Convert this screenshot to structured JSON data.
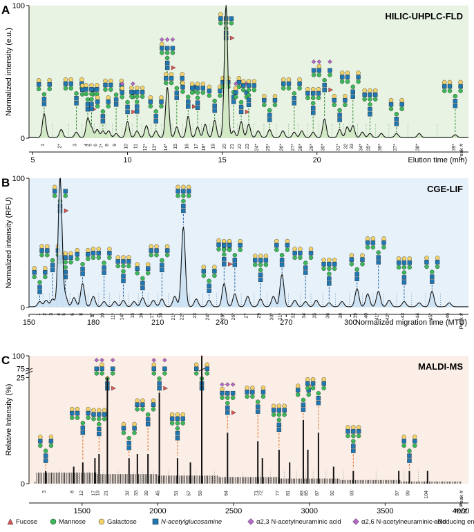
{
  "panels": [
    {
      "letter": "A",
      "method": "HILIC-UHPLC-FLD",
      "ylabel": "Normalized intensity (e.u.)",
      "xlabel": "Elution time (min)",
      "y_ticks": [
        "100",
        "0"
      ],
      "x_ticks": [
        {
          "v": 5,
          "label": "5"
        },
        {
          "v": 10,
          "label": "10"
        },
        {
          "v": 15,
          "label": "15"
        },
        {
          "v": 20,
          "label": "20"
        }
      ],
      "peak_label": "Peak #",
      "bg": "#e9f3e4",
      "fill": "#cbe6bd",
      "dash": "#2e8b2e",
      "peaks": [
        {
          "x": 5.6,
          "h": 18,
          "label": "1"
        },
        {
          "x": 6.5,
          "h": 6,
          "label": "2*"
        },
        {
          "x": 7.3,
          "h": 4,
          "label": "3"
        },
        {
          "x": 7.9,
          "h": 14,
          "label": "4"
        },
        {
          "x": 8.1,
          "h": 7,
          "label": "5"
        },
        {
          "x": 8.4,
          "h": 6,
          "label": "6"
        },
        {
          "x": 8.7,
          "h": 5,
          "label": "7*"
        },
        {
          "x": 9.0,
          "h": 5,
          "label": "8"
        },
        {
          "x": 9.4,
          "h": 3,
          "label": "9"
        },
        {
          "x": 10.0,
          "h": 12,
          "label": "10"
        },
        {
          "x": 10.5,
          "h": 5,
          "label": "11"
        },
        {
          "x": 11.0,
          "h": 9,
          "label": "12*"
        },
        {
          "x": 11.5,
          "h": 5,
          "label": "13*"
        },
        {
          "x": 12.1,
          "h": 38,
          "label": "14*"
        },
        {
          "x": 12.6,
          "h": 8,
          "label": "15"
        },
        {
          "x": 13.2,
          "h": 16,
          "label": "16"
        },
        {
          "x": 13.7,
          "h": 8,
          "label": "17"
        },
        {
          "x": 14.1,
          "h": 10,
          "label": "18*"
        },
        {
          "x": 14.6,
          "h": 13,
          "label": "19"
        },
        {
          "x": 15.2,
          "h": 100,
          "label": "20"
        },
        {
          "x": 15.6,
          "h": 5,
          "label": "21"
        },
        {
          "x": 16.0,
          "h": 12,
          "label": "22"
        },
        {
          "x": 16.4,
          "h": 10,
          "label": "23"
        },
        {
          "x": 16.9,
          "h": 5,
          "label": "24*"
        },
        {
          "x": 17.5,
          "h": 6,
          "label": "25*"
        },
        {
          "x": 18.2,
          "h": 5,
          "label": "26*"
        },
        {
          "x": 18.8,
          "h": 4,
          "label": "27*"
        },
        {
          "x": 19.2,
          "h": 5,
          "label": "28*"
        },
        {
          "x": 19.8,
          "h": 4,
          "label": "29*"
        },
        {
          "x": 20.4,
          "h": 14,
          "label": "30*"
        },
        {
          "x": 21.2,
          "h": 6,
          "label": "31*"
        },
        {
          "x": 21.6,
          "h": 8,
          "label": "32"
        },
        {
          "x": 21.9,
          "h": 9,
          "label": "33"
        },
        {
          "x": 22.4,
          "h": 4,
          "label": "34*"
        },
        {
          "x": 22.8,
          "h": 3,
          "label": "35*"
        },
        {
          "x": 23.4,
          "h": 3,
          "label": "36*"
        },
        {
          "x": 24.2,
          "h": 3,
          "label": "37*"
        },
        {
          "x": 25.4,
          "h": 3,
          "label": "38*"
        },
        {
          "x": 27.3,
          "h": 2,
          "label": "39*"
        }
      ]
    },
    {
      "letter": "B",
      "method": "CGE-LIF",
      "ylabel": "Normalized intensity (RFU)",
      "xlabel": "Normalized migration time (MTU)",
      "y_ticks": [
        "100",
        "0"
      ],
      "x_ticks": [
        {
          "v": 150,
          "label": "150"
        },
        {
          "v": 180,
          "label": "180"
        },
        {
          "v": 210,
          "label": "210"
        },
        {
          "v": 240,
          "label": "240"
        },
        {
          "v": 270,
          "label": "270"
        },
        {
          "v": 300,
          "label": "300"
        }
      ],
      "peak_label": "Peak #",
      "bg": "#e6f1fa",
      "fill": "#c7e0f3",
      "dash": "#1f5fa0",
      "peaks": [
        {
          "x": 155,
          "h": 4,
          "label": "1"
        },
        {
          "x": 158,
          "h": 5,
          "label": "2"
        },
        {
          "x": 161,
          "h": 6,
          "label": "3"
        },
        {
          "x": 164.5,
          "h": 100,
          "label": "4"
        },
        {
          "x": 167,
          "h": 8,
          "label": "5"
        },
        {
          "x": 171,
          "h": 7,
          "label": "6"
        },
        {
          "x": 175,
          "h": 18,
          "label": "8"
        },
        {
          "x": 180,
          "h": 8,
          "label": "9*"
        },
        {
          "x": 185,
          "h": 4,
          "label": "10"
        },
        {
          "x": 190,
          "h": 4,
          "label": "11*"
        },
        {
          "x": 194,
          "h": 5,
          "label": "14*"
        },
        {
          "x": 199,
          "h": 4,
          "label": "15"
        },
        {
          "x": 203,
          "h": 7,
          "label": "16"
        },
        {
          "x": 208,
          "h": 5,
          "label": "17"
        },
        {
          "x": 212,
          "h": 6,
          "label": "18"
        },
        {
          "x": 218,
          "h": 8,
          "label": "21*"
        },
        {
          "x": 222,
          "h": 62,
          "label": "22*"
        },
        {
          "x": 228,
          "h": 6,
          "label": "23"
        },
        {
          "x": 234,
          "h": 5,
          "label": "24*"
        },
        {
          "x": 241,
          "h": 18,
          "label": "25*"
        },
        {
          "x": 246,
          "h": 10,
          "label": "26*"
        },
        {
          "x": 252,
          "h": 8,
          "label": "27"
        },
        {
          "x": 258,
          "h": 6,
          "label": "29"
        },
        {
          "x": 264,
          "h": 8,
          "label": "30*"
        },
        {
          "x": 268,
          "h": 25,
          "label": "31*"
        },
        {
          "x": 274,
          "h": 5,
          "label": "32"
        },
        {
          "x": 279,
          "h": 4,
          "label": "34"
        },
        {
          "x": 284,
          "h": 5,
          "label": "35"
        },
        {
          "x": 290,
          "h": 3,
          "label": "36"
        },
        {
          "x": 296,
          "h": 4,
          "label": "38"
        },
        {
          "x": 303,
          "h": 14,
          "label": "39"
        },
        {
          "x": 308,
          "h": 10,
          "label": "40"
        },
        {
          "x": 313,
          "h": 12,
          "label": "41*"
        },
        {
          "x": 318,
          "h": 5,
          "label": "42*"
        },
        {
          "x": 325,
          "h": 4,
          "label": "43"
        },
        {
          "x": 332,
          "h": 3,
          "label": "44"
        },
        {
          "x": 338,
          "h": 12,
          "label": "45*"
        },
        {
          "x": 346,
          "h": 3,
          "label": "46"
        }
      ]
    },
    {
      "letter": "C",
      "method": "MALDI-MS",
      "ylabel": "Relative Intensity (%)",
      "xlabel": "m/z",
      "y_ticks": [
        "100",
        "75",
        "25",
        "0"
      ],
      "x_ticks": [
        {
          "v": 1500,
          "label": "1500"
        },
        {
          "v": 2000,
          "label": "2000"
        },
        {
          "v": 2500,
          "label": "2500"
        },
        {
          "v": 3000,
          "label": "3000"
        },
        {
          "v": 3500,
          "label": "3500"
        },
        {
          "v": 4000,
          "label": "4000"
        }
      ],
      "peak_label": "Peak #",
      "bg": "#fbeee6",
      "fill": "#111111",
      "dash": "#e06a1f",
      "peaks": [
        {
          "x": 1260,
          "h": 3,
          "label": "3"
        },
        {
          "x": 1445,
          "h": 4,
          "label": "8"
        },
        {
          "x": 1505,
          "h": 5,
          "label": "12"
        },
        {
          "x": 1585,
          "h": 6,
          "label": "17"
        },
        {
          "x": 1612,
          "h": 7,
          "label": "19"
        },
        {
          "x": 1667,
          "h": 25,
          "label": "21"
        },
        {
          "x": 1810,
          "h": 6,
          "label": "32"
        },
        {
          "x": 1865,
          "h": 7,
          "label": "33"
        },
        {
          "x": 1935,
          "h": 7,
          "label": "39"
        },
        {
          "x": 2010,
          "h": 28,
          "label": "45"
        },
        {
          "x": 2130,
          "h": 6,
          "label": "51"
        },
        {
          "x": 2215,
          "h": 5,
          "label": "57"
        },
        {
          "x": 2290,
          "h": 100,
          "label": "59"
        },
        {
          "x": 2460,
          "h": 12,
          "label": "64"
        },
        {
          "x": 2660,
          "h": 10,
          "label": "71"
        },
        {
          "x": 2690,
          "h": 6,
          "label": "72"
        },
        {
          "x": 2800,
          "h": 8,
          "label": "77"
        },
        {
          "x": 2870,
          "h": 5,
          "label": "81"
        },
        {
          "x": 2960,
          "h": 15,
          "label": "83"
        },
        {
          "x": 2990,
          "h": 8,
          "label": "85"
        },
        {
          "x": 3060,
          "h": 12,
          "label": "87"
        },
        {
          "x": 3160,
          "h": 4,
          "label": "92"
        },
        {
          "x": 3290,
          "h": 3,
          "label": "93"
        },
        {
          "x": 3590,
          "h": 3,
          "label": "97"
        },
        {
          "x": 3660,
          "h": 3,
          "label": "99"
        },
        {
          "x": 3780,
          "h": 3,
          "label": "104"
        }
      ]
    }
  ],
  "legend": [
    {
      "shape": "triangle",
      "color": "#e05555",
      "label": "Fucose"
    },
    {
      "shape": "circle",
      "color": "#3cb85a",
      "label": "Mannose"
    },
    {
      "shape": "circle",
      "color": "#f3d36b",
      "label": "Galactose"
    },
    {
      "shape": "square",
      "color": "#1f78b4",
      "label": "N-acetylglucosamine"
    },
    {
      "shape": "diamond",
      "color": "#b46ac8",
      "label": "α2,3 N-acetylneuraminic acid"
    },
    {
      "shape": "diamond",
      "color": "#b46ac8",
      "label": "α2,6 N-acetylneuraminic acid"
    },
    {
      "shape": "tilde",
      "color": "#333333",
      "label": "~ Reducing end"
    }
  ],
  "chart_data": [
    {
      "type": "line",
      "title": "HILIC-UHPLC-FLD",
      "xlabel": "Elution time (min)",
      "ylabel": "Normalized intensity (e.u.)",
      "xlim": [
        4.8,
        28
      ],
      "ylim": [
        0,
        100
      ],
      "x_ticks": [
        5,
        10,
        15,
        20
      ],
      "peak_x": [
        5.6,
        6.5,
        7.3,
        7.9,
        8.1,
        8.4,
        8.7,
        9.0,
        9.4,
        10.0,
        10.5,
        11.0,
        11.5,
        12.1,
        12.6,
        13.2,
        13.7,
        14.1,
        14.6,
        15.2,
        15.6,
        16.0,
        16.4,
        16.9,
        17.5,
        18.2,
        18.8,
        19.2,
        19.8,
        20.4,
        21.2,
        21.6,
        21.9,
        22.4,
        22.8,
        23.4,
        24.2,
        25.4,
        27.3
      ],
      "peak_y": [
        18,
        6,
        4,
        14,
        7,
        6,
        5,
        5,
        3,
        12,
        5,
        9,
        5,
        38,
        8,
        16,
        8,
        10,
        13,
        100,
        5,
        12,
        10,
        5,
        6,
        5,
        4,
        5,
        4,
        14,
        6,
        8,
        9,
        4,
        3,
        3,
        3,
        3,
        2
      ],
      "grid": false
    },
    {
      "type": "line",
      "title": "CGE-LIF",
      "xlabel": "Normalized migration time (MTU)",
      "ylabel": "Normalized intensity (RFU)",
      "xlim": [
        150,
        355
      ],
      "ylim": [
        0,
        100
      ],
      "x_ticks": [
        150,
        180,
        210,
        240,
        270,
        300
      ],
      "peak_x": [
        155,
        158,
        161,
        164.5,
        167,
        171,
        175,
        180,
        185,
        190,
        194,
        199,
        203,
        208,
        212,
        218,
        222,
        228,
        234,
        241,
        246,
        252,
        258,
        264,
        268,
        274,
        279,
        284,
        290,
        296,
        303,
        308,
        313,
        318,
        325,
        332,
        338,
        346
      ],
      "peak_y": [
        4,
        5,
        6,
        100,
        8,
        7,
        18,
        8,
        4,
        4,
        5,
        4,
        7,
        5,
        6,
        8,
        62,
        6,
        5,
        18,
        10,
        8,
        6,
        8,
        25,
        5,
        4,
        5,
        3,
        4,
        14,
        10,
        12,
        5,
        4,
        3,
        12,
        3
      ],
      "grid": false
    },
    {
      "type": "bar",
      "title": "MALDI-MS",
      "xlabel": "m/z",
      "ylabel": "Relative Intensity (%)",
      "xlim": [
        1150,
        4050
      ],
      "ylim": [
        0,
        100
      ],
      "y_ticks": [
        0,
        25,
        75,
        100
      ],
      "x_ticks": [
        1500,
        2000,
        2500,
        3000,
        3500,
        4000
      ],
      "peak_x": [
        1260,
        1445,
        1505,
        1585,
        1612,
        1667,
        1810,
        1865,
        1935,
        2010,
        2130,
        2215,
        2290,
        2460,
        2660,
        2690,
        2800,
        2870,
        2960,
        2990,
        3060,
        3160,
        3290,
        3590,
        3660,
        3780
      ],
      "peak_y": [
        3,
        4,
        5,
        6,
        7,
        25,
        6,
        7,
        7,
        28,
        6,
        5,
        100,
        12,
        10,
        6,
        8,
        5,
        15,
        8,
        12,
        4,
        3,
        3,
        3,
        3
      ],
      "grid": false
    }
  ]
}
